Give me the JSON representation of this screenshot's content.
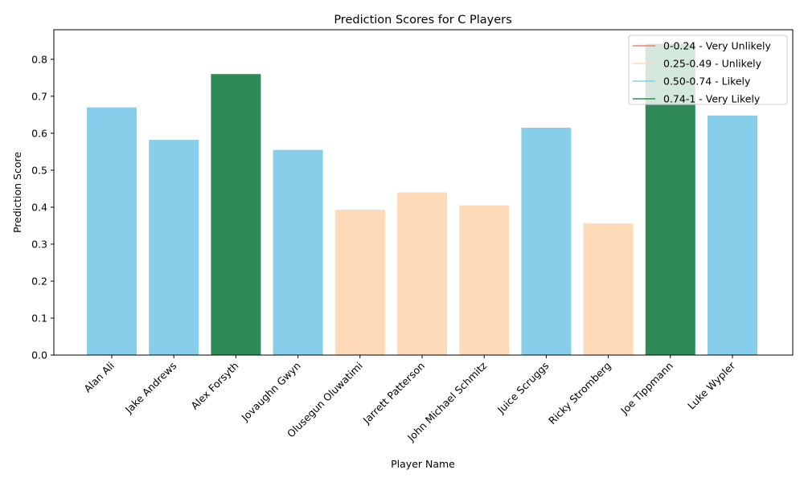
{
  "chart_data": {
    "type": "bar",
    "title": "Prediction Scores for C Players",
    "xlabel": "Player Name",
    "ylabel": "Prediction Score",
    "ylim": [
      0,
      0.88
    ],
    "yticks": [
      "0.0",
      "0.1",
      "0.2",
      "0.3",
      "0.4",
      "0.5",
      "0.6",
      "0.7",
      "0.8"
    ],
    "grid": false,
    "legend_position": "top-right",
    "categories": [
      "Alan Ali",
      "Jake Andrews",
      "Alex Forsyth",
      "Jovaughn Gwyn",
      "Olusegun Oluwatimi",
      "Jarrett Patterson",
      "John Michael Schmitz",
      "Juice Scruggs",
      "Ricky Stromberg",
      "Joe Tippmann",
      "Luke Wypler"
    ],
    "values": [
      0.67,
      0.582,
      0.76,
      0.555,
      0.393,
      0.44,
      0.405,
      0.615,
      0.356,
      0.842,
      0.648
    ],
    "bar_colors": [
      "#87CEEB",
      "#87CEEB",
      "#2E8B57",
      "#87CEEB",
      "#FFDAB9",
      "#FFDAB9",
      "#FFDAB9",
      "#87CEEB",
      "#FFDAB9",
      "#2E8B57",
      "#87CEEB"
    ],
    "legend": [
      {
        "label": "0-0.24 - Very Unlikely",
        "color": "#FA8072"
      },
      {
        "label": "0.25-0.49 - Unlikely",
        "color": "#FFDAB9"
      },
      {
        "label": "0.50-0.74 - Likely",
        "color": "#87CEEB"
      },
      {
        "label": "0.74-1 - Very Likely",
        "color": "#2E8B57"
      }
    ]
  }
}
